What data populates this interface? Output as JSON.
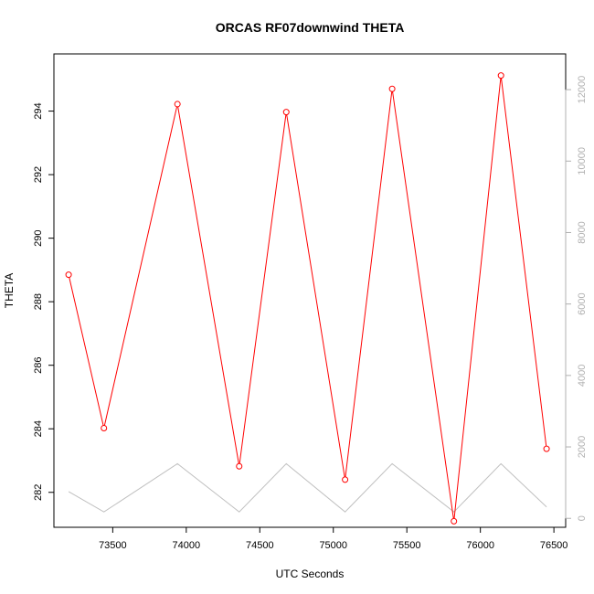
{
  "chart_data": {
    "type": "line",
    "title": "ORCAS RF07downwind THETA",
    "xlabel": "UTC Seconds",
    "ylabel": "THETA",
    "xlim": [
      73100,
      76580
    ],
    "ylim": [
      280.9,
      295.8
    ],
    "y2lim": [
      -250,
      13000
    ],
    "x_ticks": [
      73500,
      74000,
      74500,
      75000,
      75500,
      76000,
      76500
    ],
    "y_ticks": [
      282,
      284,
      286,
      288,
      290,
      292,
      294
    ],
    "y2_ticks": [
      0,
      2000,
      4000,
      6000,
      8000,
      10000,
      12000
    ],
    "grid": false,
    "series": [
      {
        "axis": "left",
        "color": "#ff0000",
        "marker": "circle",
        "points": [
          {
            "x": 73200,
            "y": 288.85
          },
          {
            "x": 73440,
            "y": 284.02
          },
          {
            "x": 73940,
            "y": 294.22
          },
          {
            "x": 74360,
            "y": 282.82
          },
          {
            "x": 74680,
            "y": 293.97
          },
          {
            "x": 75080,
            "y": 282.4
          },
          {
            "x": 75400,
            "y": 294.7
          },
          {
            "x": 75820,
            "y": 281.09
          },
          {
            "x": 76140,
            "y": 295.12
          },
          {
            "x": 76450,
            "y": 283.37
          }
        ]
      },
      {
        "axis": "right",
        "color": "#c0c0c0",
        "marker": "none",
        "points": [
          {
            "x": 73200,
            "y": 750
          },
          {
            "x": 73440,
            "y": 180
          },
          {
            "x": 73940,
            "y": 1530
          },
          {
            "x": 74360,
            "y": 180
          },
          {
            "x": 74680,
            "y": 1530
          },
          {
            "x": 75080,
            "y": 180
          },
          {
            "x": 75400,
            "y": 1530
          },
          {
            "x": 75820,
            "y": 180
          },
          {
            "x": 76140,
            "y": 1530
          },
          {
            "x": 76450,
            "y": 320
          }
        ]
      }
    ]
  }
}
